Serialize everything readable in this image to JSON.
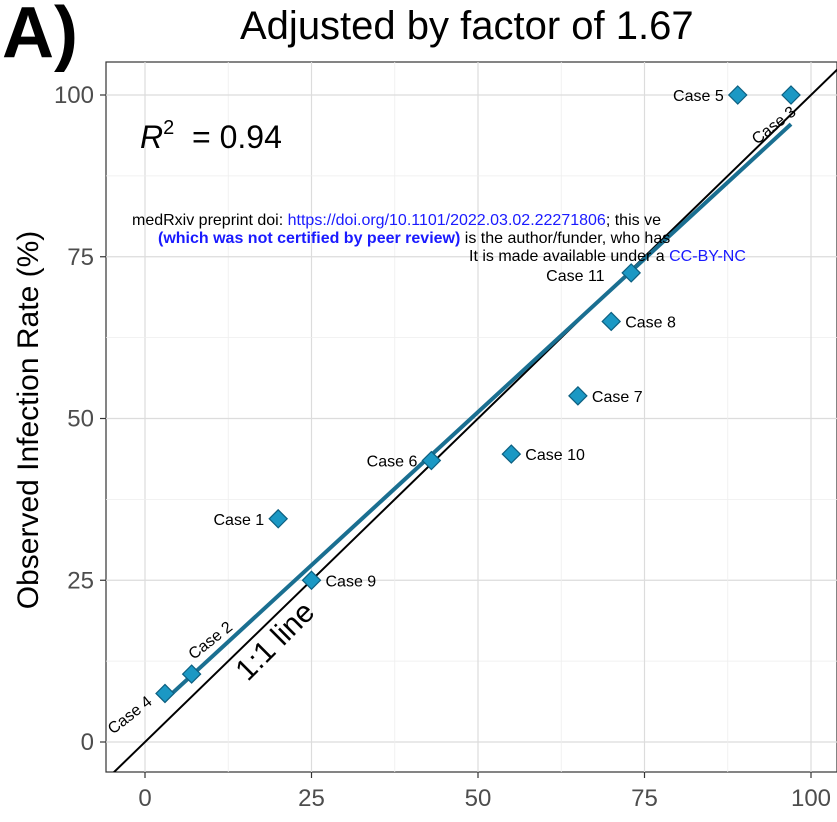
{
  "panel_label": "A)",
  "chart_data": {
    "type": "scatter",
    "title": "Adjusted by factor of 1.67",
    "xlabel": "",
    "ylabel": "Observed Infection Rate (%)",
    "xlim": [
      -5,
      105
    ],
    "ylim": [
      -4,
      105
    ],
    "x_ticks": [
      0,
      25,
      50,
      75,
      100
    ],
    "y_ticks": [
      0,
      25,
      50,
      75,
      100
    ],
    "grid": true,
    "annotation_r2": "= 0.94",
    "reference_line_label": "1:1 line",
    "point_color": "#1b98c4",
    "fit_line_color": "#1a6f91",
    "fit_line": {
      "x": [
        3,
        97
      ],
      "y": [
        6.5,
        95.5
      ]
    },
    "points": [
      {
        "label": "Case 1",
        "x": 20,
        "y": 34.5
      },
      {
        "label": "Case 2",
        "x": 7,
        "y": 10.5
      },
      {
        "label": "Case 3",
        "x": 97,
        "y": 100
      },
      {
        "label": "Case 4",
        "x": 3,
        "y": 7.5
      },
      {
        "label": "Case 5",
        "x": 89,
        "y": 100
      },
      {
        "label": "Case 6",
        "x": 43,
        "y": 43.5
      },
      {
        "label": "Case 7",
        "x": 65,
        "y": 53.5
      },
      {
        "label": "Case 8",
        "x": 70,
        "y": 65
      },
      {
        "label": "Case 9",
        "x": 25,
        "y": 25
      },
      {
        "label": "Case 10",
        "x": 55,
        "y": 44.5
      },
      {
        "label": "Case 11",
        "x": 73,
        "y": 72.5
      }
    ]
  },
  "watermark": {
    "line1_prefix": "medRxiv preprint doi: ",
    "line1_link": "https://doi.org/10.1101/2022.03.02.22271806",
    "line1_suffix": "; this ve",
    "line2_bold": "(which was not certified by peer review)",
    "line2_suffix": " is the author/funder, who has",
    "line3_prefix": "It is made available under a ",
    "line3_link": "CC-BY-NC"
  }
}
